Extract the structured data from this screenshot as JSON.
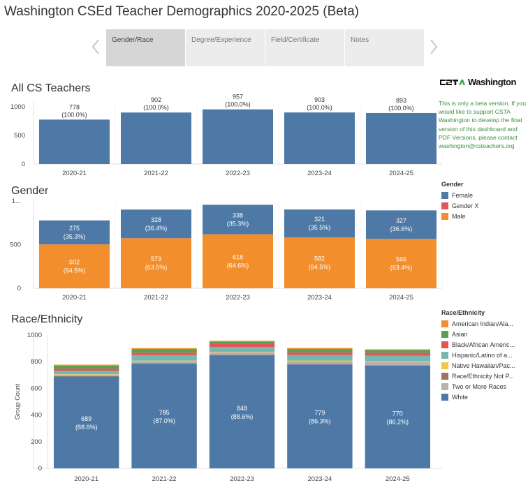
{
  "dashboard": {
    "title": "Washington CSEd Teacher Demographics 2020-2025 (Beta)",
    "tabs": [
      {
        "label": "Gender/Race",
        "active": true
      },
      {
        "label": "Degree/Experience",
        "active": false
      },
      {
        "label": "Field/Certificate",
        "active": false
      },
      {
        "label": "Notes",
        "active": false
      }
    ],
    "prev_icon": "chevron-left-icon",
    "next_icon": "chevron-right-icon"
  },
  "sidebar": {
    "logo_text": "Washington",
    "logo_mark": "CSTA",
    "beta_note": "This is only a beta version. If you would like to support CSTA Washington to develop the final version of this dashboard and PDF Versions, please contact washington@csteachers.org",
    "note_color": "#3b8f3b"
  },
  "sections": {
    "all": "All CS Teachers",
    "gender": "Gender",
    "race": "Race/Ethnicity"
  },
  "colors": {
    "female": "#4e79a7",
    "gender_x": "#e15759",
    "male": "#f28e2b",
    "american_indian": "#f28e2b",
    "asian": "#59a14f",
    "black": "#e15759",
    "hispanic": "#76b7b2",
    "native_hawaiian": "#edc948",
    "not_provided": "#9c755f",
    "two_or_more": "#bab0ac",
    "white": "#4e79a7"
  },
  "chart_data": [
    {
      "type": "bar",
      "title": "All CS Teachers",
      "categories": [
        "2020-21",
        "2021-22",
        "2022-23",
        "2023-24",
        "2024-25"
      ],
      "values": [
        778,
        902,
        957,
        903,
        893
      ],
      "labels": [
        "(100.0%)",
        "(100.0%)",
        "(100.0%)",
        "(100.0%)",
        "(100.0%)"
      ],
      "yticks": [
        "1000",
        "500",
        "0"
      ],
      "ylim": [
        0,
        1100
      ]
    },
    {
      "type": "bar",
      "title": "Gender",
      "stacked": true,
      "categories": [
        "2020-21",
        "2021-22",
        "2022-23",
        "2023-24",
        "2024-25"
      ],
      "series": [
        {
          "name": "Male",
          "values": [
            502,
            573,
            618,
            582,
            566
          ],
          "labels": [
            "(64.5%)",
            "(63.5%)",
            "(64.6%)",
            "(64.5%)",
            "(63.4%)"
          ]
        },
        {
          "name": "Gender X",
          "values": [
            1,
            1,
            1,
            0,
            0
          ],
          "labels": [
            "",
            "",
            "",
            "",
            ""
          ]
        },
        {
          "name": "Female",
          "values": [
            275,
            328,
            338,
            321,
            327
          ],
          "labels": [
            "(35.3%)",
            "(36.4%)",
            "(35.3%)",
            "(35.5%)",
            "(36.6%)"
          ]
        }
      ],
      "yticks": [
        "1...",
        "500",
        "0"
      ],
      "ylim": [
        0,
        1000
      ],
      "legend": {
        "title": "Gender",
        "position": "right",
        "items": [
          "Female",
          "Gender X",
          "Male"
        ]
      }
    },
    {
      "type": "bar",
      "title": "Race/Ethnicity",
      "stacked": true,
      "ylabel": "Group Count",
      "categories": [
        "2020-21",
        "2021-22",
        "2022-23",
        "2023-24",
        "2024-25"
      ],
      "series": [
        {
          "name": "White",
          "values": [
            689,
            785,
            848,
            779,
            770
          ],
          "labels": [
            "(88.6%)",
            "(87.0%)",
            "(88.6%)",
            "(86.3%)",
            "(86.2%)"
          ]
        },
        {
          "name": "Race/Ethnicity Not P...",
          "values": [
            3,
            4,
            4,
            4,
            4
          ]
        },
        {
          "name": "Two or More Races",
          "values": [
            11,
            16,
            18,
            22,
            25
          ]
        },
        {
          "name": "Native Hawaiian/Pac...",
          "values": [
            3,
            3,
            3,
            4,
            5
          ]
        },
        {
          "name": "Hispanic/Latino of a...",
          "values": [
            27,
            41,
            38,
            42,
            41
          ]
        },
        {
          "name": "Black/African Americ...",
          "values": [
            16,
            19,
            21,
            20,
            22
          ]
        },
        {
          "name": "Asian",
          "values": [
            22,
            27,
            20,
            24,
            20
          ]
        },
        {
          "name": "American Indian/Ala...",
          "values": [
            7,
            7,
            5,
            8,
            6
          ]
        }
      ],
      "yticks": [
        "1000",
        "800",
        "600",
        "400",
        "200",
        "0"
      ],
      "ylim": [
        0,
        1000
      ],
      "legend": {
        "title": "Race/Ethnicity",
        "position": "right",
        "items": [
          "American Indian/Ala...",
          "Asian",
          "Black/African Americ...",
          "Hispanic/Latino of a...",
          "Native Hawaiian/Pac...",
          "Race/Ethnicity Not P...",
          "Two or More Races",
          "White"
        ]
      }
    }
  ]
}
